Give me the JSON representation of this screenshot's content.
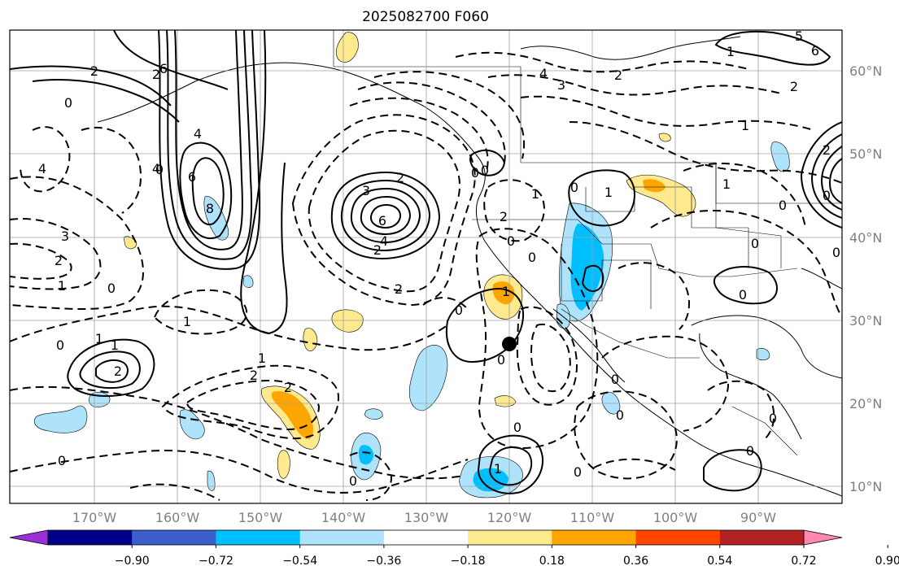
{
  "title": "2025082700 F060",
  "longitude_labels": [
    "170°W",
    "160°W",
    "150°W",
    "140°W",
    "130°W",
    "120°W",
    "110°W",
    "100°W",
    "90°W"
  ],
  "latitude_labels": [
    "60°N",
    "50°N",
    "40°N",
    "30°N",
    "20°N",
    "10°N"
  ],
  "colorbar": {
    "colors": [
      "#9b30d9",
      "#00008b",
      "#3a5fcd",
      "#00bfff",
      "#aee3fb",
      "#ffffff",
      "#fde98e",
      "#ffa500",
      "#ff4500",
      "#b22222",
      "#ff88b0"
    ],
    "tick_labels": [
      "−0.90",
      "−0.72",
      "−0.54",
      "−0.36",
      "−0.18",
      "0.18",
      "0.36",
      "0.54",
      "0.72",
      "0.90"
    ]
  },
  "contour_labels": [
    "2",
    "2",
    "4",
    "6",
    "4",
    "6",
    "8",
    "3",
    "2",
    "6",
    "4",
    "2",
    "2",
    "3",
    "2",
    "0",
    "4",
    "3",
    "2",
    "1",
    "2",
    "1",
    "0",
    "1",
    "2",
    "0",
    "1",
    "2",
    "0",
    "1",
    "0",
    "1",
    "0",
    "0",
    "0",
    "0",
    "1",
    "2",
    "1",
    "0",
    "4",
    "6",
    "5",
    "2",
    "0",
    "0",
    "0",
    "1",
    "0",
    "0",
    "0",
    "0",
    "0",
    "0",
    "1",
    "2",
    "1",
    "0",
    "0",
    "0",
    "0",
    "0",
    "1"
  ],
  "marker": "storm-center-dot"
}
